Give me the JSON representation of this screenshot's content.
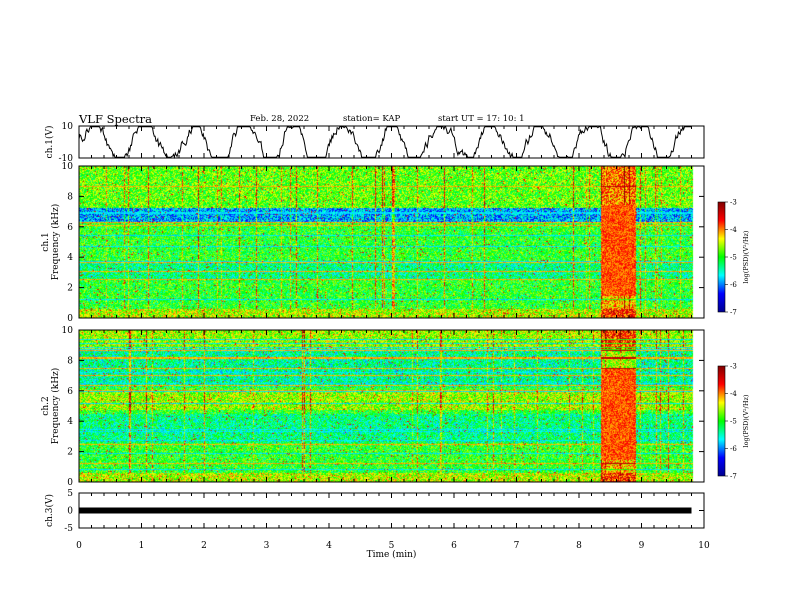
{
  "header": {
    "title": "VLF Spectra",
    "date": "Feb. 28, 2022",
    "station": "station= KAP",
    "start": "start UT =   17: 10: 1"
  },
  "chart_data": {
    "type": "heatmap",
    "xlabel": "Time (min)",
    "xlim": [
      0,
      10
    ],
    "xticks": [
      0,
      1,
      2,
      3,
      4,
      5,
      6,
      7,
      8,
      9,
      10
    ],
    "panels": [
      {
        "id": "ch1-waveform",
        "type": "line",
        "ylabel": "ch.1(V)",
        "ylim": [
          -10,
          10
        ],
        "yticks": [
          10,
          -10
        ]
      },
      {
        "id": "ch1-spectrogram",
        "type": "heatmap",
        "ylabel_1": "ch.1",
        "ylabel_2": "Frequency (kHz)",
        "ylim": [
          0,
          10
        ],
        "yticks": [
          0,
          2,
          4,
          6,
          8,
          10
        ]
      },
      {
        "id": "ch2-spectrogram",
        "type": "heatmap",
        "ylabel_1": "ch.2",
        "ylabel_2": "Frequency (kHz)",
        "ylim": [
          0,
          10
        ],
        "yticks": [
          0,
          2,
          4,
          6,
          8,
          10
        ]
      },
      {
        "id": "ch3-waveform",
        "type": "line",
        "ylabel": "ch.3(V)",
        "ylim": [
          -5,
          5
        ],
        "yticks": [
          5,
          0,
          -5
        ],
        "value": 0
      }
    ],
    "colorbar": {
      "label": "log(PSD)(V²/Hz)",
      "range": [
        -7,
        -3
      ],
      "ticks": [
        -3,
        -4,
        -5,
        -6,
        -7
      ],
      "colors": [
        "#00008f",
        "#0000ff",
        "#00ffff",
        "#00ff00",
        "#ffff00",
        "#ff0000",
        "#800000"
      ]
    },
    "data_end_min": 9.8,
    "burst_interval_min": [
      8.35,
      8.9
    ]
  }
}
